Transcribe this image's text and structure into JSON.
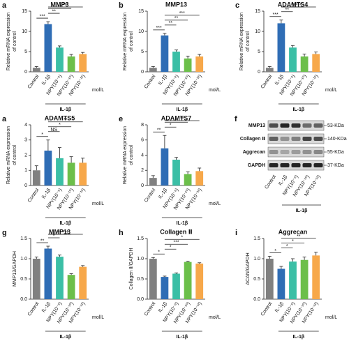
{
  "chart_data": [
    {
      "type": "bar",
      "panel": "a",
      "title": "MMP3",
      "ylabel": [
        "Relative mRNA expression",
        "of control"
      ],
      "categories": [
        "Control",
        "IL-1β",
        "NPY(10⁻⁸)",
        "NPY(10⁻¹⁰)",
        "NPY(10⁻¹²)"
      ],
      "group_label": "IL-1β",
      "unit": "mol/L",
      "values": [
        1,
        11.8,
        6,
        3.8,
        4.4
      ],
      "errors": [
        0.3,
        0.6,
        0.4,
        0.5,
        0.4
      ],
      "colors": [
        "#808080",
        "#2f6db5",
        "#3bbfa6",
        "#6cbf4a",
        "#f7a84a"
      ],
      "ylim": [
        0,
        15
      ],
      "yticks": [
        0,
        5,
        10,
        15
      ],
      "significance": [
        {
          "label": "***",
          "pair": [
            0,
            1
          ]
        },
        {
          "label": "**",
          "pair": [
            1,
            2
          ]
        },
        {
          "label": "**",
          "pair": [
            1,
            3
          ]
        },
        {
          "label": "***",
          "pair": [
            1,
            4
          ]
        }
      ]
    },
    {
      "type": "bar",
      "panel": "b",
      "title": "MMP13",
      "ylabel": [
        "Relative mRNA expression",
        "of control"
      ],
      "categories": [
        "Control",
        "IL-1β",
        "NPY(10⁻⁸)",
        "NPY(10⁻¹⁰)",
        "NPY(10⁻¹²)"
      ],
      "group_label": "IL-1β",
      "unit": "mol/L",
      "values": [
        1,
        9,
        5,
        3.3,
        3.8
      ],
      "errors": [
        0.3,
        0.5,
        0.4,
        0.6,
        0.5
      ],
      "colors": [
        "#808080",
        "#2f6db5",
        "#3bbfa6",
        "#6cbf4a",
        "#f7a84a"
      ],
      "ylim": [
        0,
        15
      ],
      "yticks": [
        0,
        5,
        10,
        15
      ],
      "significance": [
        {
          "label": "***",
          "pair": [
            0,
            1
          ]
        },
        {
          "label": "**",
          "pair": [
            1,
            2
          ]
        },
        {
          "label": "**",
          "pair": [
            1,
            3
          ]
        },
        {
          "label": "***",
          "pair": [
            1,
            4
          ]
        }
      ]
    },
    {
      "type": "bar",
      "panel": "c",
      "title": "ADAMTS4",
      "ylabel": [
        "Relative mRNA expression",
        "of control"
      ],
      "categories": [
        "Control",
        "IL-1β",
        "NPY(10⁻⁸)",
        "NPY(10⁻¹⁰)",
        "NPY(10⁻¹²)"
      ],
      "group_label": "IL-1β",
      "unit": "mol/L",
      "values": [
        1,
        12,
        6,
        3.8,
        4.4
      ],
      "errors": [
        0.3,
        0.8,
        0.5,
        0.6,
        0.5
      ],
      "colors": [
        "#808080",
        "#2f6db5",
        "#3bbfa6",
        "#6cbf4a",
        "#f7a84a"
      ],
      "ylim": [
        0,
        15
      ],
      "yticks": [
        0,
        5,
        10,
        15
      ],
      "significance": [
        {
          "label": "***",
          "pair": [
            0,
            1
          ]
        },
        {
          "label": "**",
          "pair": [
            1,
            2
          ]
        },
        {
          "label": "**",
          "pair": [
            1,
            3
          ]
        },
        {
          "label": "***",
          "pair": [
            1,
            4
          ]
        }
      ]
    },
    {
      "type": "bar",
      "panel": "a",
      "title": "ADAMTS5",
      "ylabel": [
        "Relative mRNA expression",
        "of control"
      ],
      "categories": [
        "Control",
        "IL-1β",
        "NPY(10⁻⁸)",
        "NPY(10⁻¹⁰)",
        "NPY(10⁻¹²)"
      ],
      "group_label": "IL-1β",
      "unit": "mol/L",
      "values": [
        1,
        2.3,
        1.8,
        1.5,
        1.5
      ],
      "errors": [
        0.3,
        0.7,
        0.7,
        0.4,
        0.3
      ],
      "colors": [
        "#808080",
        "#2f6db5",
        "#3bbfa6",
        "#6cbf4a",
        "#f7a84a"
      ],
      "ylim": [
        0,
        4
      ],
      "yticks": [
        0,
        1,
        2,
        3,
        4
      ],
      "significance": [
        {
          "label": "*",
          "pair": [
            0,
            1
          ]
        },
        {
          "label": "NS",
          "pair": [
            1,
            2
          ]
        },
        {
          "label": "*",
          "pair": [
            1,
            3
          ]
        },
        {
          "label": "**",
          "pair": [
            1,
            4
          ]
        }
      ]
    },
    {
      "type": "bar",
      "panel": "e",
      "title": "ADAMTS7",
      "ylabel": [
        "Relative mRNA expression",
        "of control"
      ],
      "categories": [
        "Control",
        "IL-1β",
        "NPY(10⁻⁸)",
        "NPY(10⁻¹⁰)",
        "NPY(10⁻¹²)"
      ],
      "group_label": "IL-1β",
      "unit": "mol/L",
      "values": [
        1,
        4.9,
        3.4,
        1.5,
        1.9
      ],
      "errors": [
        0.3,
        1.7,
        0.3,
        0.3,
        0.4
      ],
      "colors": [
        "#808080",
        "#2f6db5",
        "#3bbfa6",
        "#6cbf4a",
        "#f7a84a"
      ],
      "ylim": [
        0,
        8
      ],
      "yticks": [
        0,
        2,
        4,
        6,
        8
      ],
      "significance": [
        {
          "label": "**",
          "pair": [
            0,
            1
          ]
        },
        {
          "label": "*",
          "pair": [
            1,
            2
          ]
        },
        {
          "label": "*",
          "pair": [
            1,
            3
          ]
        },
        {
          "label": "**",
          "pair": [
            1,
            4
          ]
        }
      ]
    },
    {
      "type": "bar",
      "panel": "g",
      "title": "MMP13",
      "ylabel": [
        "MMP13/GAPDH"
      ],
      "categories": [
        "Control",
        "IL-1β",
        "NPY(10⁻⁸)",
        "NPY(10⁻¹⁰)",
        "NPY(10⁻¹²)"
      ],
      "group_label": "IL-1β",
      "unit": "mol/L",
      "values": [
        1.0,
        1.25,
        1.05,
        0.6,
        0.8
      ],
      "errors": [
        0.04,
        0.06,
        0.04,
        0.03,
        0.03
      ],
      "colors": [
        "#808080",
        "#2f6db5",
        "#3bbfa6",
        "#6cbf4a",
        "#f7a84a"
      ],
      "ylim": [
        0,
        1.5
      ],
      "yticks": [
        {
          "value": 0,
          "label": "0.0"
        },
        0.5,
        {
          "value": 1,
          "label": "1.0"
        },
        1.5
      ],
      "significance": [
        {
          "label": "**",
          "pair": [
            0,
            1
          ]
        },
        {
          "label": "*",
          "pair": [
            1,
            2
          ]
        },
        {
          "label": "**",
          "pair": [
            1,
            3
          ]
        },
        {
          "label": "***",
          "pair": [
            1,
            4
          ]
        }
      ]
    },
    {
      "type": "bar",
      "panel": "h",
      "title": "Collagen Ⅱ",
      "ylabel": [
        "Collagen Ⅱ/GAPDH"
      ],
      "categories": [
        "Control",
        "IL-1β",
        "NPY(10⁻⁸)",
        "NPY(10⁻¹⁰)",
        "NPY(10⁻¹²)"
      ],
      "group_label": "IL-1β",
      "unit": "mol/L",
      "values": [
        1.0,
        0.55,
        0.63,
        0.92,
        0.88
      ],
      "errors": [
        0.03,
        0.02,
        0.02,
        0.02,
        0.02
      ],
      "colors": [
        "#808080",
        "#2f6db5",
        "#3bbfa6",
        "#6cbf4a",
        "#f7a84a"
      ],
      "ylim": [
        0,
        1.5
      ],
      "yticks": [
        {
          "value": 0,
          "label": "0.0"
        },
        0.5,
        {
          "value": 1,
          "label": "1.0"
        },
        1.5
      ],
      "significance": [
        {
          "label": "*",
          "pair": [
            0,
            1
          ]
        },
        {
          "label": "*",
          "pair": [
            1,
            2
          ]
        },
        {
          "label": "***",
          "pair": [
            1,
            3
          ]
        },
        {
          "label": "*",
          "pair": [
            1,
            4
          ]
        }
      ]
    },
    {
      "type": "bar",
      "panel": "i",
      "title": "Aggrecan",
      "ylabel": [
        "ACAN/GAPDH"
      ],
      "categories": [
        "Control",
        "IL-1β",
        "NPY(10⁻⁸)",
        "NPY(10⁻¹⁰)",
        "NPY(10⁻¹²)"
      ],
      "group_label": "IL-1β",
      "unit": "mol/L",
      "values": [
        1.0,
        0.75,
        0.93,
        0.97,
        1.08
      ],
      "errors": [
        0.06,
        0.06,
        0.07,
        0.07,
        0.08
      ],
      "colors": [
        "#808080",
        "#2f6db5",
        "#3bbfa6",
        "#6cbf4a",
        "#f7a84a"
      ],
      "ylim": [
        0,
        1.5
      ],
      "yticks": [
        {
          "value": 0,
          "label": "0.0"
        },
        0.5,
        {
          "value": 1,
          "label": "1.0"
        },
        1.5
      ],
      "significance": [
        {
          "label": "*",
          "pair": [
            0,
            1
          ]
        },
        {
          "label": "*",
          "pair": [
            1,
            2
          ]
        },
        {
          "label": "*",
          "pair": [
            1,
            3
          ]
        },
        {
          "label": "**",
          "pair": [
            1,
            4
          ]
        }
      ]
    }
  ],
  "blot": {
    "panel": "f",
    "proteins": [
      "MMP13",
      "Collagen Ⅱ",
      "Aggrecan",
      "GAPDH"
    ],
    "sizes": [
      "53-KDa",
      "140-KDa",
      "55-KDa",
      "37-KDa"
    ],
    "lanes": [
      "Control",
      "IL-1β",
      "NPY(10⁻⁸)",
      "NPY(10⁻¹⁰)",
      "NPY(10⁻¹²)"
    ],
    "group_label": "IL-1β"
  }
}
